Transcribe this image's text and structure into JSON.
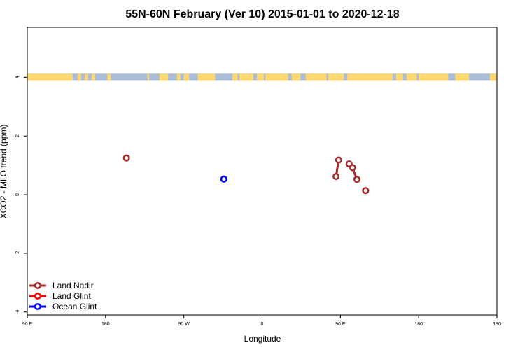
{
  "chart_data": {
    "type": "line",
    "title": "55N-60N February (Ver 10)   2015-01-01 to 2020-12-18",
    "xlabel": "Longitude",
    "ylabel": "XCO2 - MLO trend (ppm)",
    "xlim": [
      -90,
      180
    ],
    "ylim": [
      -4.1,
      5.7
    ],
    "x_ticks": [
      {
        "value": -90,
        "label": "90 E"
      },
      {
        "value": -45,
        "label": "180"
      },
      {
        "value": 0,
        "label": "90 W"
      },
      {
        "value": 45,
        "label": "0"
      },
      {
        "value": 90,
        "label": "90 E"
      },
      {
        "value": 135,
        "label": "180"
      }
    ],
    "y_ticks": [
      {
        "value": -4,
        "label": "-4"
      },
      {
        "value": -2,
        "label": "-2"
      },
      {
        "value": 0,
        "label": "0"
      },
      {
        "value": 2,
        "label": "2"
      },
      {
        "value": 4,
        "label": "4"
      }
    ],
    "grid": false,
    "legend_position": "bottom-left",
    "map_strip": {
      "y_center": 4.0,
      "land_color": "#ffd970",
      "ocean_color": "#a9bcd8"
    },
    "series": [
      {
        "name": "Land Nadir",
        "color": "#a52a2a",
        "segments": [
          [
            {
              "x": -33,
              "y": 1.25
            }
          ],
          [
            {
              "x": 87.5,
              "y": 0.62
            },
            {
              "x": 89,
              "y": 1.18
            }
          ],
          [
            {
              "x": 95,
              "y": 1.05
            },
            {
              "x": 97,
              "y": 0.92
            },
            {
              "x": 99.5,
              "y": 0.52
            }
          ],
          [
            {
              "x": 104.5,
              "y": 0.14
            }
          ]
        ]
      },
      {
        "name": "Land Glint",
        "color": "#ff0000",
        "segments": []
      },
      {
        "name": "Ocean Glint",
        "color": "#0000ff",
        "segments": [
          [
            {
              "x": 23,
              "y": 0.53
            }
          ]
        ]
      }
    ]
  }
}
